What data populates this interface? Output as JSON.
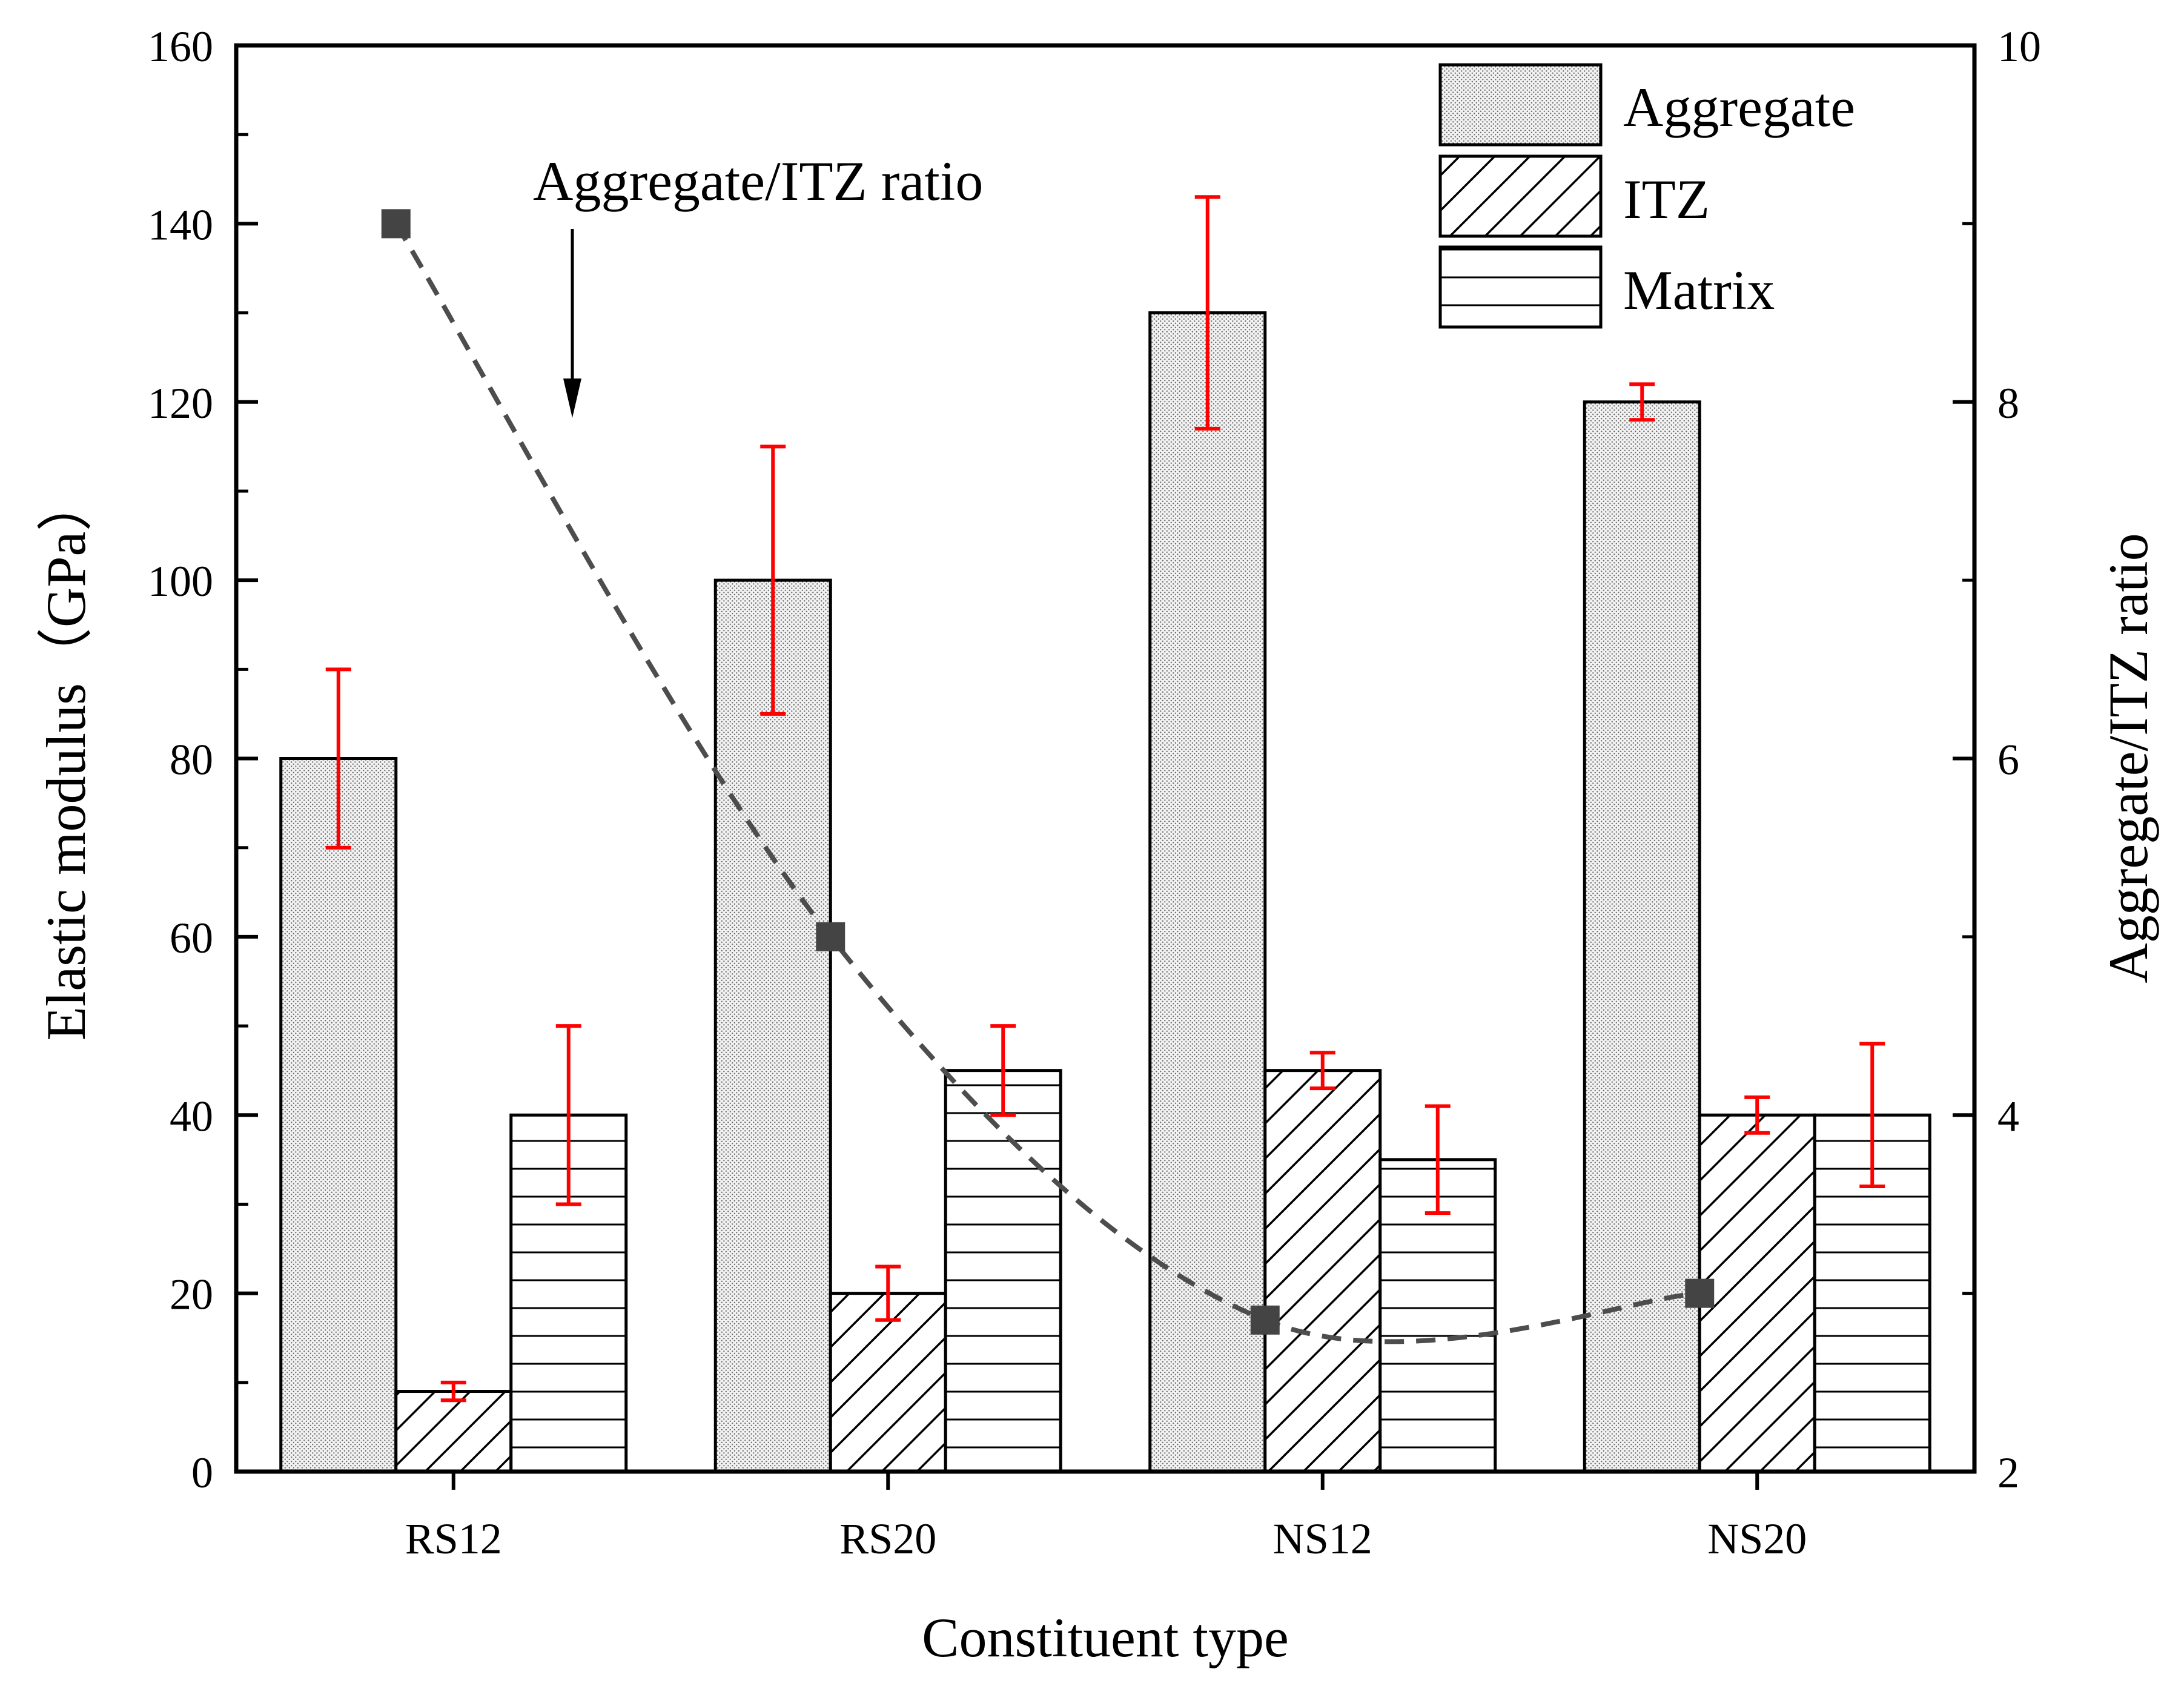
{
  "chart_data": {
    "type": "bar",
    "xlabel": "Constituent type",
    "ylabel": "Elastic modulus（GPa）",
    "y2label": "Aggregate/ITZ ratio",
    "ylim": [
      0,
      160
    ],
    "y2lim": [
      2,
      10
    ],
    "yticks": [
      "0",
      "20",
      "40",
      "60",
      "80",
      "100",
      "120",
      "140",
      "160"
    ],
    "y2ticks": [
      "2",
      "4",
      "6",
      "8",
      "10"
    ],
    "categories": [
      "RS12",
      "RS20",
      "NS12",
      "NS20"
    ],
    "series": [
      {
        "name": "Aggregate",
        "pattern": "dots",
        "values": [
          80,
          100,
          130,
          120
        ],
        "err_low": [
          70,
          85,
          117,
          118
        ],
        "err_high": [
          90,
          115,
          143,
          122
        ]
      },
      {
        "name": "ITZ",
        "pattern": "diagonal",
        "values": [
          9,
          20,
          45,
          40
        ],
        "err_low": [
          8,
          17,
          43,
          38
        ],
        "err_high": [
          10,
          23,
          47,
          42
        ]
      },
      {
        "name": "Matrix",
        "pattern": "horizontal",
        "values": [
          40,
          45,
          35,
          40
        ],
        "err_low": [
          30,
          40,
          29,
          32
        ],
        "err_high": [
          50,
          50,
          41,
          48
        ]
      }
    ],
    "ratio_series": {
      "name": "Aggregate/ITZ ratio",
      "axis": "right",
      "values": [
        9.0,
        5.0,
        2.85,
        3.0
      ],
      "style": "dashed-line-square-markers"
    },
    "annotation": {
      "text": "Aggregate/ITZ ratio",
      "arrow": true
    },
    "legend": {
      "position": "top-right",
      "entries": [
        "Aggregate",
        "ITZ",
        "Matrix"
      ]
    },
    "colors": {
      "error_bar": "#ff0000",
      "ratio_line": "#4d4d4d",
      "bar_border": "#000000",
      "axis": "#000000"
    }
  }
}
